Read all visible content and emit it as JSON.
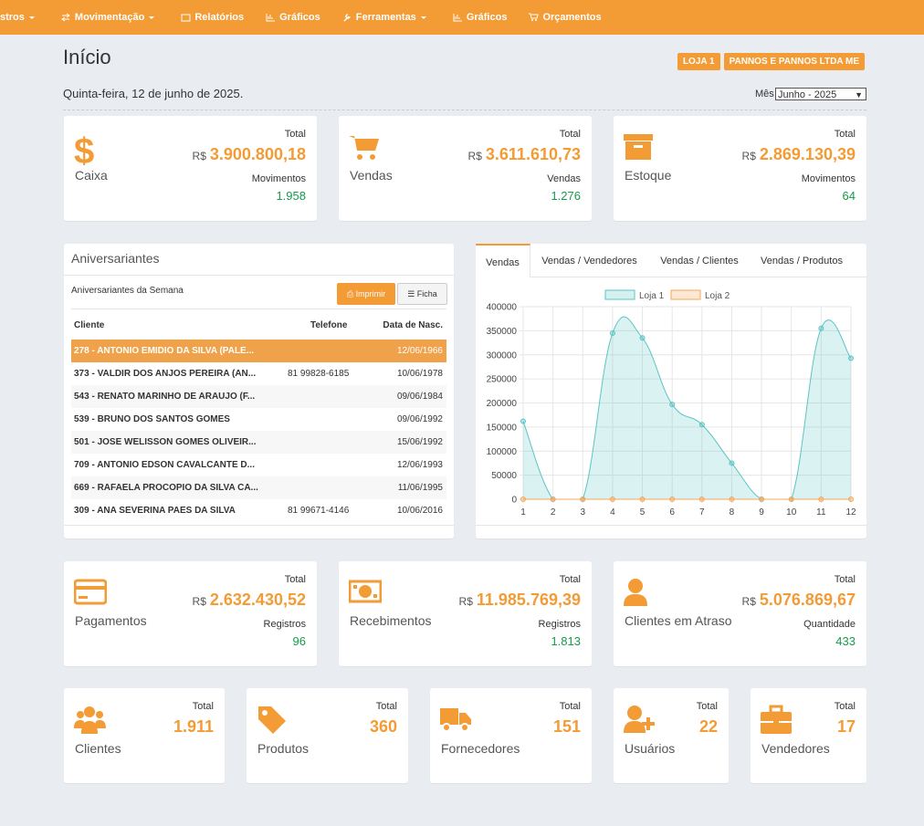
{
  "nav": [
    "stros",
    "Movimentação",
    "Relatórios",
    "Gráficos",
    "Ferramentas",
    "Gráficos",
    "Orçamentos"
  ],
  "header": {
    "title": "Início",
    "badges": [
      "LOJA 1",
      "PANNOS E PANNOS LTDA ME"
    ],
    "date": "Quinta-feira, 12 de junho de 2025.",
    "month_label": "Mês",
    "month_value": "Junho - 2025"
  },
  "summary_cards": [
    {
      "label": "Caixa",
      "total_label": "Total",
      "currency": "R$",
      "total": "3.900.800,18",
      "sub_label": "Movimentos",
      "sub_value": "1.958"
    },
    {
      "label": "Vendas",
      "total_label": "Total",
      "currency": "R$",
      "total": "3.611.610,73",
      "sub_label": "Vendas",
      "sub_value": "1.276"
    },
    {
      "label": "Estoque",
      "total_label": "Total",
      "currency": "R$",
      "total": "2.869.130,39",
      "sub_label": "Movimentos",
      "sub_value": "64"
    }
  ],
  "birthdays": {
    "title": "Aniversariantes",
    "subtitle": "Aniversariantes da Semana",
    "buttons": [
      "Imprimir",
      "Ficha"
    ],
    "columns": [
      "Cliente",
      "Telefone",
      "Data de Nasc."
    ],
    "rows": [
      [
        "278 - ANTONIO EMIDIO DA SILVA (PALE...",
        null,
        "12/06/1966"
      ],
      [
        "373 - VALDIR DOS ANJOS PEREIRA (AN...",
        "81 99828-6185",
        "10/06/1978"
      ],
      [
        "543 - RENATO MARINHO DE ARAUJO (F...",
        null,
        "09/06/1984"
      ],
      [
        "539 - BRUNO DOS SANTOS GOMES",
        null,
        "09/06/1992"
      ],
      [
        "501 - JOSE WELISSON GOMES OLIVEIR...",
        null,
        "15/06/1992"
      ],
      [
        "709 - ANTONIO EDSON CAVALCANTE D...",
        null,
        "12/06/1993"
      ],
      [
        "669 - RAFAELA PROCOPIO DA SILVA CA...",
        null,
        "11/06/1995"
      ],
      [
        "309 - ANA SEVERINA PAES DA SILVA",
        "81 99671-4146",
        "10/06/2016"
      ]
    ]
  },
  "chart_tabs": [
    "Vendas",
    "Vendas / Vendedores",
    "Vendas / Clientes",
    "Vendas / Produtos"
  ],
  "chart_data": {
    "type": "line",
    "area": true,
    "grid": true,
    "legend": "top",
    "categories": [
      "1",
      "2",
      "3",
      "4",
      "5",
      "6",
      "7",
      "8",
      "9",
      "10",
      "11",
      "12"
    ],
    "series": [
      {
        "name": "Loja 1",
        "color": "#5bc4c4",
        "values": [
          162000,
          0,
          0,
          345000,
          335000,
          197000,
          155000,
          75000,
          0,
          0,
          355000,
          293000
        ]
      },
      {
        "name": "Loja 2",
        "color": "#f6a55a",
        "values": [
          0,
          0,
          0,
          0,
          0,
          0,
          0,
          0,
          0,
          0,
          0,
          0
        ]
      }
    ],
    "ylim": [
      0,
      400000
    ],
    "yticks": [
      0,
      50000,
      100000,
      150000,
      200000,
      250000,
      300000,
      350000,
      400000
    ]
  },
  "summary_cards_2": [
    {
      "label": "Pagamentos",
      "total_label": "Total",
      "currency": "R$",
      "total": "2.632.430,52",
      "sub_label": "Registros",
      "sub_value": "96"
    },
    {
      "label": "Recebimentos",
      "total_label": "Total",
      "currency": "R$",
      "total": "11.985.769,39",
      "sub_label": "Registros",
      "sub_value": "1.813"
    },
    {
      "label": "Clientes em Atraso",
      "total_label": "Total",
      "currency": "R$",
      "total": "5.076.869,67",
      "sub_label": "Quantidade",
      "sub_value": "433"
    }
  ],
  "count_cards": [
    {
      "label": "Clientes",
      "total_label": "Total",
      "total": "1.911"
    },
    {
      "label": "Produtos",
      "total_label": "Total",
      "total": "360"
    },
    {
      "label": "Fornecedores",
      "total_label": "Total",
      "total": "151"
    },
    {
      "label": "Usuários",
      "total_label": "Total",
      "total": "22"
    },
    {
      "label": "Vendedores",
      "total_label": "Total",
      "total": "17"
    }
  ]
}
